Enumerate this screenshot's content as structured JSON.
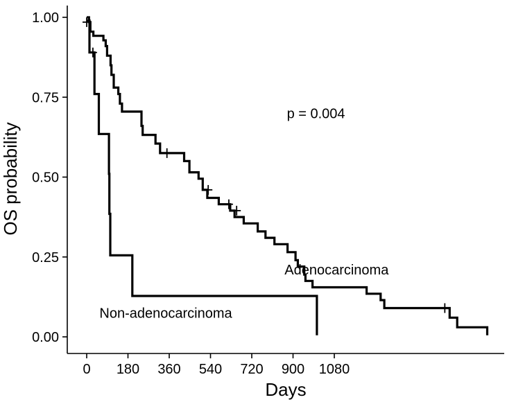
{
  "chart_data": {
    "type": "line",
    "subtype": "kaplan-meier step",
    "xlabel": "Days",
    "ylabel": "OS probability",
    "xlim": [
      -15,
      1770
    ],
    "ylim": [
      0,
      1.0
    ],
    "x_ticks": [
      0,
      180,
      360,
      540,
      720,
      900,
      1080
    ],
    "y_ticks": [
      0.0,
      0.25,
      0.5,
      0.75,
      1.0
    ],
    "y_tick_labels": [
      "0.00",
      "0.25",
      "0.50",
      "0.75",
      "1.00"
    ],
    "grid": false,
    "annotations": [
      {
        "text": "p = 0.004",
        "x": 1000,
        "y": 0.7
      },
      {
        "text": "Adenocarcinoma",
        "x": 1090,
        "y": 0.21
      },
      {
        "text": "Non-adenocarcinoma",
        "x": 345,
        "y": 0.075
      }
    ],
    "series": [
      {
        "name": "Adenocarcinoma",
        "steps": [
          [
            0,
            1.0
          ],
          [
            10,
            0.985
          ],
          [
            16,
            0.955
          ],
          [
            29,
            0.942
          ],
          [
            73,
            0.928
          ],
          [
            83,
            0.91
          ],
          [
            89,
            0.88
          ],
          [
            104,
            0.85
          ],
          [
            108,
            0.82
          ],
          [
            118,
            0.78
          ],
          [
            138,
            0.76
          ],
          [
            145,
            0.73
          ],
          [
            154,
            0.705
          ],
          [
            239,
            0.66
          ],
          [
            244,
            0.632
          ],
          [
            300,
            0.605
          ],
          [
            320,
            0.575
          ],
          [
            425,
            0.55
          ],
          [
            448,
            0.515
          ],
          [
            488,
            0.495
          ],
          [
            506,
            0.46
          ],
          [
            526,
            0.435
          ],
          [
            576,
            0.415
          ],
          [
            626,
            0.395
          ],
          [
            645,
            0.375
          ],
          [
            685,
            0.355
          ],
          [
            746,
            0.33
          ],
          [
            780,
            0.31
          ],
          [
            819,
            0.29
          ],
          [
            876,
            0.265
          ],
          [
            911,
            0.24
          ],
          [
            921,
            0.22
          ],
          [
            949,
            0.195
          ],
          [
            954,
            0.175
          ],
          [
            985,
            0.155
          ],
          [
            1221,
            0.135
          ],
          [
            1282,
            0.115
          ],
          [
            1298,
            0.09
          ],
          [
            1583,
            0.06
          ],
          [
            1616,
            0.03
          ],
          [
            1747,
            0.005
          ]
        ],
        "end_x": 1747,
        "censored": [
          [
            350,
            0.575
          ],
          [
            530,
            0.46
          ],
          [
            620,
            0.415
          ],
          [
            654,
            0.395
          ],
          [
            1562,
            0.09
          ]
        ]
      },
      {
        "name": "Non-adenocarcinoma",
        "steps": [
          [
            0,
            0.99
          ],
          [
            12,
            0.89
          ],
          [
            34,
            0.76
          ],
          [
            53,
            0.635
          ],
          [
            97,
            0.51
          ],
          [
            99,
            0.385
          ],
          [
            103,
            0.255
          ],
          [
            199,
            0.128
          ],
          [
            1004,
            0.005
          ]
        ],
        "end_x": 1004,
        "censored": [
          [
            0,
            0.985
          ],
          [
            27,
            0.89
          ]
        ]
      }
    ]
  }
}
